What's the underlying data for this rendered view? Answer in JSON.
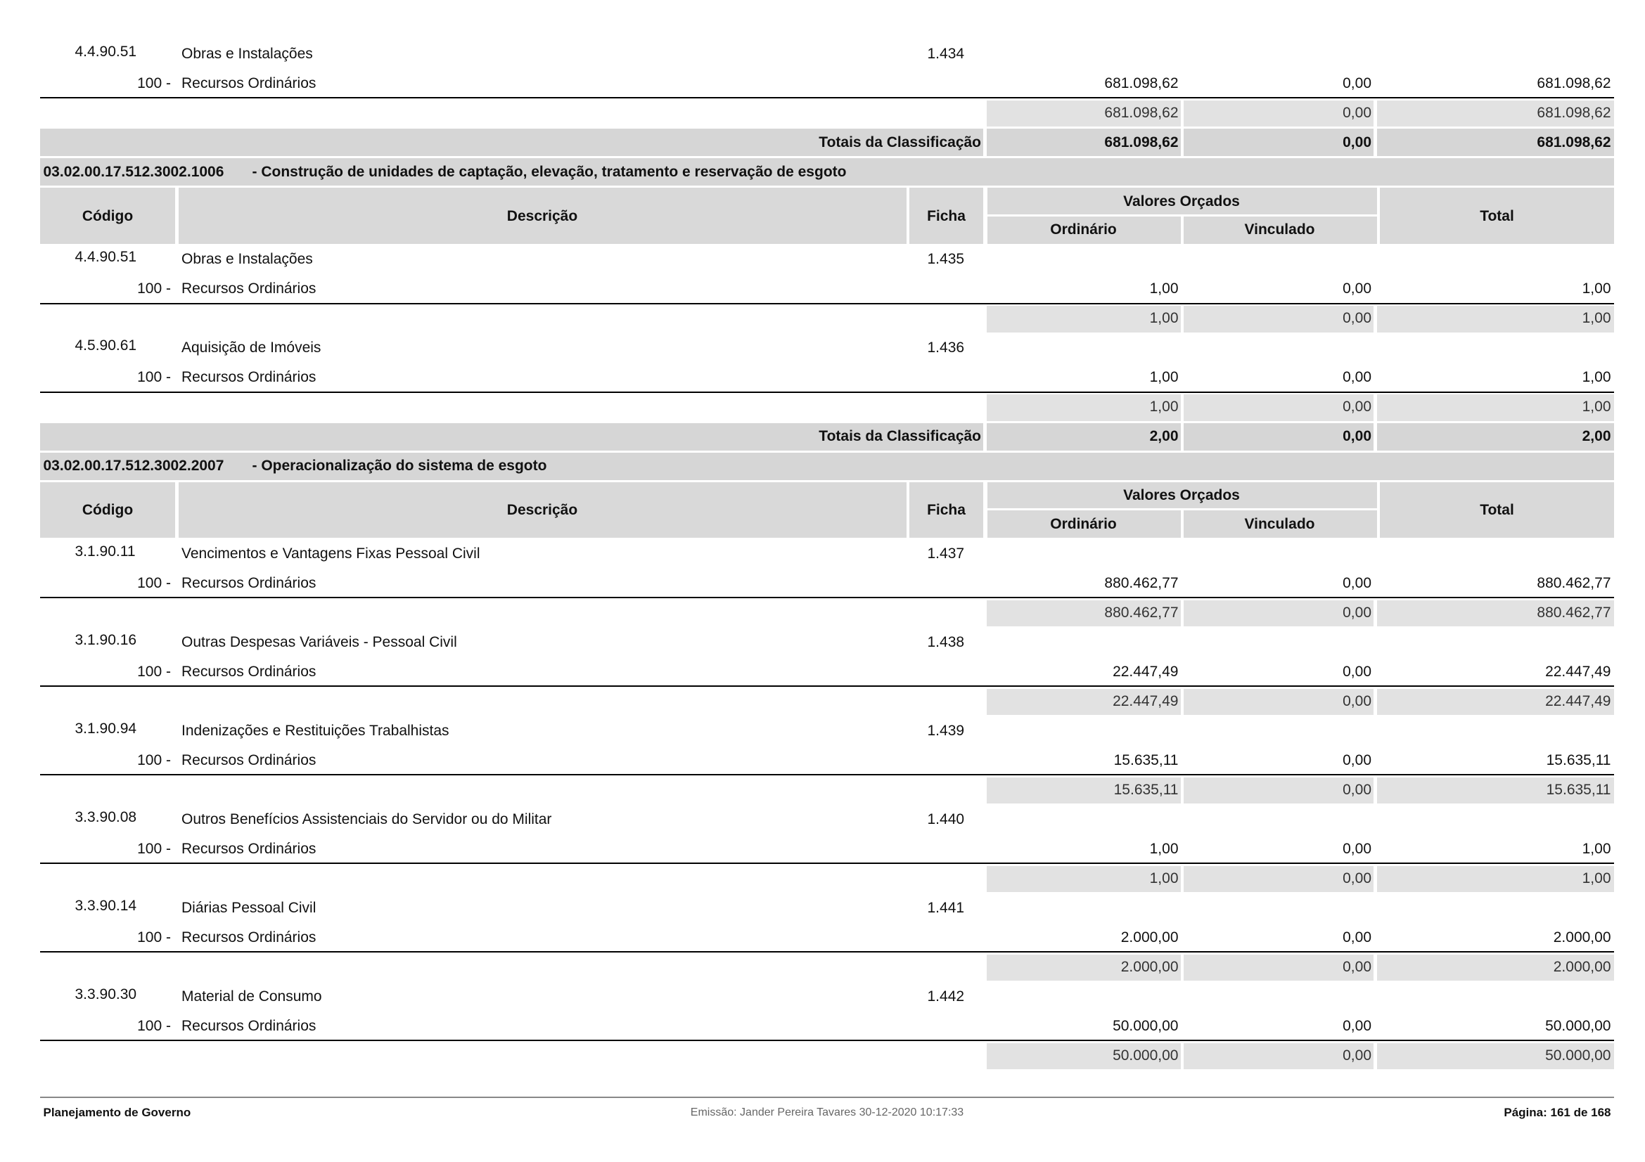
{
  "sections": [
    {
      "items": [
        {
          "code": "4.4.90.51",
          "description": "Obras e Instalações",
          "ficha": "1.434",
          "source": "100 -",
          "source_name": "Recursos Ordinários",
          "values": [
            "681.098,62",
            "0,00",
            "681.098,62"
          ],
          "subtotal": [
            "681.098,62",
            "0,00",
            "681.098,62"
          ]
        }
      ],
      "totals": {
        "label": "Totais da Classificação",
        "values": [
          "681.098,62",
          "0,00",
          "681.098,62"
        ]
      }
    },
    {
      "heading": {
        "code": "03.02.00.17.512.3002.1006",
        "title": "- Construção de unidades de captação, elevação, tratamento e reservação de esgoto"
      },
      "columns": {
        "code": "Código",
        "description": "Descrição",
        "ficha": "Ficha",
        "group": "Valores Orçados",
        "ordinario": "Ordinário",
        "vinculado": "Vinculado",
        "total": "Total"
      },
      "items": [
        {
          "code": "4.4.90.51",
          "description": "Obras e Instalações",
          "ficha": "1.435",
          "source": "100 -",
          "source_name": "Recursos Ordinários",
          "values": [
            "1,00",
            "0,00",
            "1,00"
          ],
          "subtotal": [
            "1,00",
            "0,00",
            "1,00"
          ]
        },
        {
          "code": "4.5.90.61",
          "description": "Aquisição de Imóveis",
          "ficha": "1.436",
          "source": "100 -",
          "source_name": "Recursos Ordinários",
          "values": [
            "1,00",
            "0,00",
            "1,00"
          ],
          "subtotal": [
            "1,00",
            "0,00",
            "1,00"
          ]
        }
      ],
      "totals": {
        "label": "Totais da Classificação",
        "values": [
          "2,00",
          "0,00",
          "2,00"
        ]
      }
    },
    {
      "heading": {
        "code": "03.02.00.17.512.3002.2007",
        "title": "- Operacionalização do sistema de esgoto"
      },
      "columns": {
        "code": "Código",
        "description": "Descrição",
        "ficha": "Ficha",
        "group": "Valores Orçados",
        "ordinario": "Ordinário",
        "vinculado": "Vinculado",
        "total": "Total"
      },
      "items": [
        {
          "code": "3.1.90.11",
          "description": "Vencimentos e Vantagens Fixas  Pessoal Civil",
          "ficha": "1.437",
          "source": "100 -",
          "source_name": "Recursos Ordinários",
          "values": [
            "880.462,77",
            "0,00",
            "880.462,77"
          ],
          "subtotal": [
            "880.462,77",
            "0,00",
            "880.462,77"
          ]
        },
        {
          "code": "3.1.90.16",
          "description": "Outras Despesas Variáveis - Pessoal Civil",
          "ficha": "1.438",
          "source": "100 -",
          "source_name": "Recursos Ordinários",
          "values": [
            "22.447,49",
            "0,00",
            "22.447,49"
          ],
          "subtotal": [
            "22.447,49",
            "0,00",
            "22.447,49"
          ]
        },
        {
          "code": "3.1.90.94",
          "description": "Indenizações e Restituições Trabalhistas",
          "ficha": "1.439",
          "source": "100 -",
          "source_name": "Recursos Ordinários",
          "values": [
            "15.635,11",
            "0,00",
            "15.635,11"
          ],
          "subtotal": [
            "15.635,11",
            "0,00",
            "15.635,11"
          ]
        },
        {
          "code": "3.3.90.08",
          "description": "Outros Benefícios Assistenciais do Servidor ou do Militar",
          "ficha": "1.440",
          "source": "100 -",
          "source_name": "Recursos Ordinários",
          "values": [
            "1,00",
            "0,00",
            "1,00"
          ],
          "subtotal": [
            "1,00",
            "0,00",
            "1,00"
          ]
        },
        {
          "code": "3.3.90.14",
          "description": "Diárias  Pessoal Civil",
          "ficha": "1.441",
          "source": "100 -",
          "source_name": "Recursos Ordinários",
          "values": [
            "2.000,00",
            "0,00",
            "2.000,00"
          ],
          "subtotal": [
            "2.000,00",
            "0,00",
            "2.000,00"
          ]
        },
        {
          "code": "3.3.90.30",
          "description": "Material de Consumo",
          "ficha": "1.442",
          "source": "100 -",
          "source_name": "Recursos Ordinários",
          "values": [
            "50.000,00",
            "0,00",
            "50.000,00"
          ],
          "subtotal": [
            "50.000,00",
            "0,00",
            "50.000,00"
          ]
        }
      ]
    }
  ],
  "footer": {
    "left": "Planejamento de Governo",
    "center": "Emissão: Jander Pereira Tavares 30-12-2020 10:17:33",
    "right": "Página: 161 de 168"
  }
}
